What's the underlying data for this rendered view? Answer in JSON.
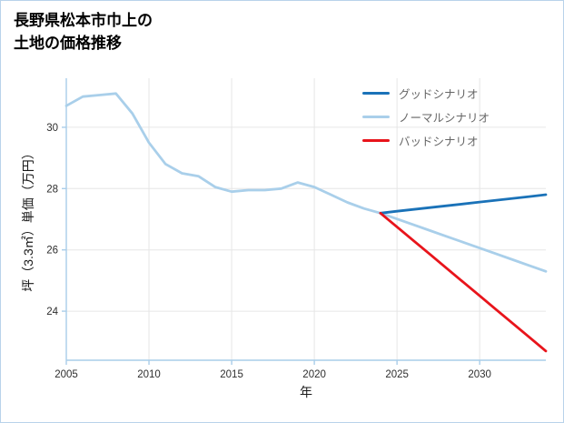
{
  "page": {
    "title_line1": "長野県松本市巾上の",
    "title_line2": "土地の価格推移"
  },
  "chart_data": {
    "type": "line",
    "title": "長野県松本市巾上の土地の価格推移",
    "xlabel": "年",
    "ylabel": "坪（3.3㎡）単価（万円）",
    "xlim": [
      2005,
      2034
    ],
    "ylim": [
      22.4,
      31.6
    ],
    "xticks": [
      2005,
      2010,
      2015,
      2020,
      2025,
      2030
    ],
    "yticks": [
      24,
      26,
      28,
      30
    ],
    "grid": true,
    "legend_position": "upper-right",
    "colors": {
      "grid": "#e6e6e6",
      "axis": "#a9cde9",
      "tick_label": "#2e2e2e",
      "legend_label": "#666666"
    },
    "series": [
      {
        "name": "グッドシナリオ",
        "key": "good-scenario",
        "color": "#1a72b8",
        "x": [
          2024,
          2025,
          2026,
          2027,
          2028,
          2029,
          2030,
          2031,
          2032,
          2033,
          2034
        ],
        "y": [
          27.2,
          27.26,
          27.32,
          27.38,
          27.44,
          27.5,
          27.56,
          27.62,
          27.68,
          27.74,
          27.8
        ]
      },
      {
        "name": "ノーマルシナリオ",
        "key": "normal-scenario",
        "color": "#a9cfea",
        "x": [
          2005,
          2006,
          2007,
          2008,
          2009,
          2010,
          2011,
          2012,
          2013,
          2014,
          2015,
          2016,
          2017,
          2018,
          2019,
          2020,
          2021,
          2022,
          2023,
          2024,
          2025,
          2026,
          2027,
          2028,
          2029,
          2030,
          2031,
          2032,
          2033,
          2034
        ],
        "y": [
          30.7,
          31.0,
          31.05,
          31.1,
          30.45,
          29.5,
          28.8,
          28.5,
          28.4,
          28.05,
          27.9,
          27.95,
          27.95,
          28.0,
          28.2,
          28.05,
          27.8,
          27.55,
          27.35,
          27.2,
          27.01,
          26.82,
          26.63,
          26.44,
          26.25,
          26.06,
          25.87,
          25.68,
          25.49,
          25.3
        ]
      },
      {
        "name": "バッドシナリオ",
        "key": "bad-scenario",
        "color": "#e8141b",
        "x": [
          2024,
          2025,
          2026,
          2027,
          2028,
          2029,
          2030,
          2031,
          2032,
          2033,
          2034
        ],
        "y": [
          27.2,
          26.75,
          26.3,
          25.85,
          25.4,
          24.95,
          24.5,
          24.05,
          23.6,
          23.15,
          22.7
        ]
      }
    ]
  }
}
